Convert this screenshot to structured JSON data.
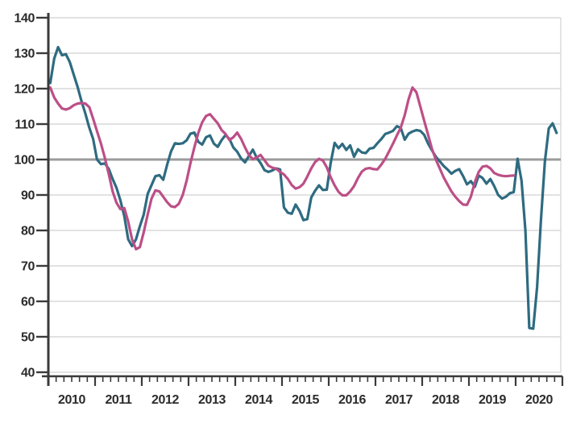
{
  "chart_data": {
    "type": "line",
    "title": "",
    "xlabel": "",
    "ylabel": "",
    "x_start": "2010-01",
    "frequency": "monthly",
    "x_tick_labels": [
      "2010",
      "2011",
      "2012",
      "2013",
      "2014",
      "2015",
      "2016",
      "2017",
      "2018",
      "2019",
      "2020"
    ],
    "y_tick_labels": [
      "40",
      "50",
      "60",
      "70",
      "80",
      "90",
      "100",
      "110",
      "120",
      "130",
      "140"
    ],
    "y_ticks": [
      40,
      50,
      60,
      70,
      80,
      90,
      100,
      110,
      120,
      130,
      140
    ],
    "ylim": [
      40,
      140
    ],
    "reference_line": 100,
    "grid": true,
    "legend": "none",
    "series": [
      {
        "name": "teal-series",
        "color": "#2e6b80",
        "values": [
          121.6,
          128.5,
          131.7,
          129.4,
          129.7,
          127.5,
          124.0,
          120.5,
          116.5,
          113.0,
          109.0,
          105.8,
          100.0,
          98.7,
          98.9,
          97.4,
          94.5,
          92.0,
          88.5,
          84.0,
          77.5,
          75.6,
          77.5,
          81.2,
          84.5,
          90.3,
          92.8,
          95.3,
          95.6,
          94.3,
          98.5,
          102.3,
          104.6,
          104.4,
          104.6,
          105.4,
          107.3,
          107.6,
          105.0,
          104.2,
          106.3,
          106.8,
          104.5,
          103.6,
          105.5,
          106.9,
          105.8,
          103.4,
          102.2,
          100.3,
          99.2,
          101.0,
          102.8,
          100.5,
          99.0,
          97.0,
          96.5,
          96.9,
          97.5,
          97.2,
          86.5,
          85.0,
          84.7,
          87.3,
          85.5,
          82.9,
          83.2,
          89.3,
          91.2,
          92.7,
          91.4,
          91.5,
          99.0,
          104.7,
          103.2,
          104.4,
          102.7,
          104.0,
          100.8,
          102.9,
          102.0,
          101.8,
          103.1,
          103.3,
          104.6,
          105.8,
          107.2,
          107.6,
          108.1,
          109.4,
          108.9,
          105.6,
          107.3,
          107.9,
          108.3,
          108.1,
          107.0,
          104.5,
          102.6,
          100.8,
          99.5,
          98.2,
          97.2,
          96.0,
          96.8,
          97.3,
          95.3,
          93.0,
          93.9,
          92.3,
          95.5,
          94.8,
          93.2,
          94.5,
          92.5,
          90.0,
          89.0,
          89.5,
          90.5,
          90.8,
          100.2,
          94.0,
          80.0,
          52.5,
          52.3,
          64.0,
          83.0,
          99.5,
          108.8,
          110.2,
          107.5
        ]
      },
      {
        "name": "pink-series",
        "color": "#bc4f87",
        "values": [
          120.3,
          117.5,
          115.8,
          114.4,
          114.1,
          114.5,
          115.3,
          115.8,
          115.9,
          115.8,
          114.8,
          111.5,
          108.0,
          104.5,
          100.5,
          96.0,
          91.0,
          87.8,
          86.0,
          86.3,
          82.5,
          77.5,
          74.7,
          75.3,
          79.5,
          84.5,
          89.0,
          91.3,
          91.0,
          89.5,
          88.0,
          86.8,
          86.6,
          87.5,
          90.0,
          94.0,
          99.0,
          103.5,
          107.5,
          110.5,
          112.3,
          112.8,
          111.5,
          110.2,
          108.3,
          107.2,
          105.5,
          106.3,
          107.6,
          105.8,
          103.4,
          101.3,
          100.1,
          100.6,
          101.3,
          99.8,
          98.3,
          97.7,
          97.4,
          96.5,
          95.8,
          94.5,
          92.8,
          91.8,
          92.2,
          93.2,
          95.2,
          97.5,
          99.3,
          100.2,
          99.7,
          97.8,
          95.0,
          92.7,
          90.9,
          89.9,
          89.9,
          91.0,
          92.5,
          94.8,
          96.6,
          97.4,
          97.6,
          97.3,
          97.2,
          98.6,
          100.2,
          102.3,
          104.5,
          106.8,
          109.0,
          112.5,
          117.0,
          120.3,
          119.0,
          115.0,
          111.0,
          107.0,
          103.0,
          100.0,
          97.5,
          95.0,
          93.0,
          91.0,
          89.5,
          88.3,
          87.3,
          87.2,
          89.5,
          93.6,
          96.5,
          98.0,
          98.2,
          97.5,
          96.2,
          95.7,
          95.4,
          95.3,
          95.4,
          95.5
        ]
      }
    ]
  },
  "colors": {
    "background": "#ffffff",
    "grid": "#d9d9d9",
    "grid_emphasis": "#9b9b9b",
    "axis": "#3a3a3a",
    "tick": "#3a3a3a",
    "label": "#2b2b2b"
  }
}
